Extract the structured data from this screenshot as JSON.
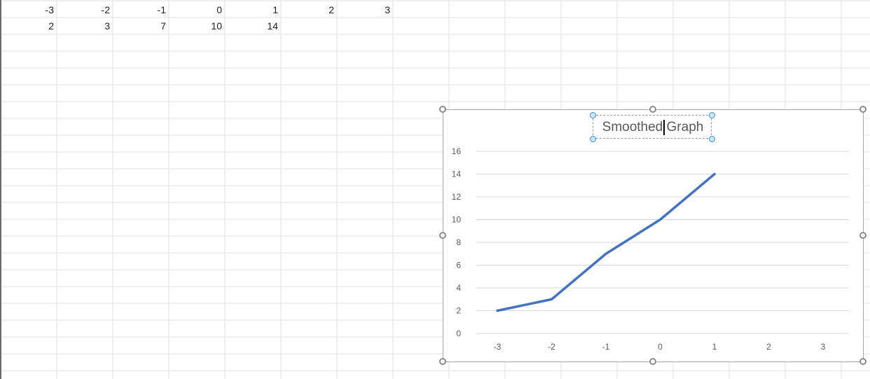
{
  "sheet": {
    "rows": [
      [
        "-3",
        "-2",
        "-1",
        "0",
        "1",
        "2",
        "3"
      ],
      [
        "2",
        "3",
        "7",
        "10",
        "14",
        "",
        ""
      ]
    ]
  },
  "chart": {
    "title_text": "Smoothed Graph",
    "line_color": "#4472C4"
  },
  "chart_data": {
    "type": "line",
    "title": "Smoothed Graph",
    "xlabel": "",
    "ylabel": "",
    "categories": [
      "-3",
      "-2",
      "-1",
      "0",
      "1",
      "2",
      "3"
    ],
    "series": [
      {
        "values": [
          2,
          3,
          7,
          10,
          14,
          null,
          null
        ]
      }
    ],
    "ylim": [
      0,
      16
    ],
    "yticks": [
      "0",
      "2",
      "4",
      "6",
      "8",
      "10",
      "12",
      "14",
      "16"
    ],
    "grid": true,
    "legend": "none"
  }
}
